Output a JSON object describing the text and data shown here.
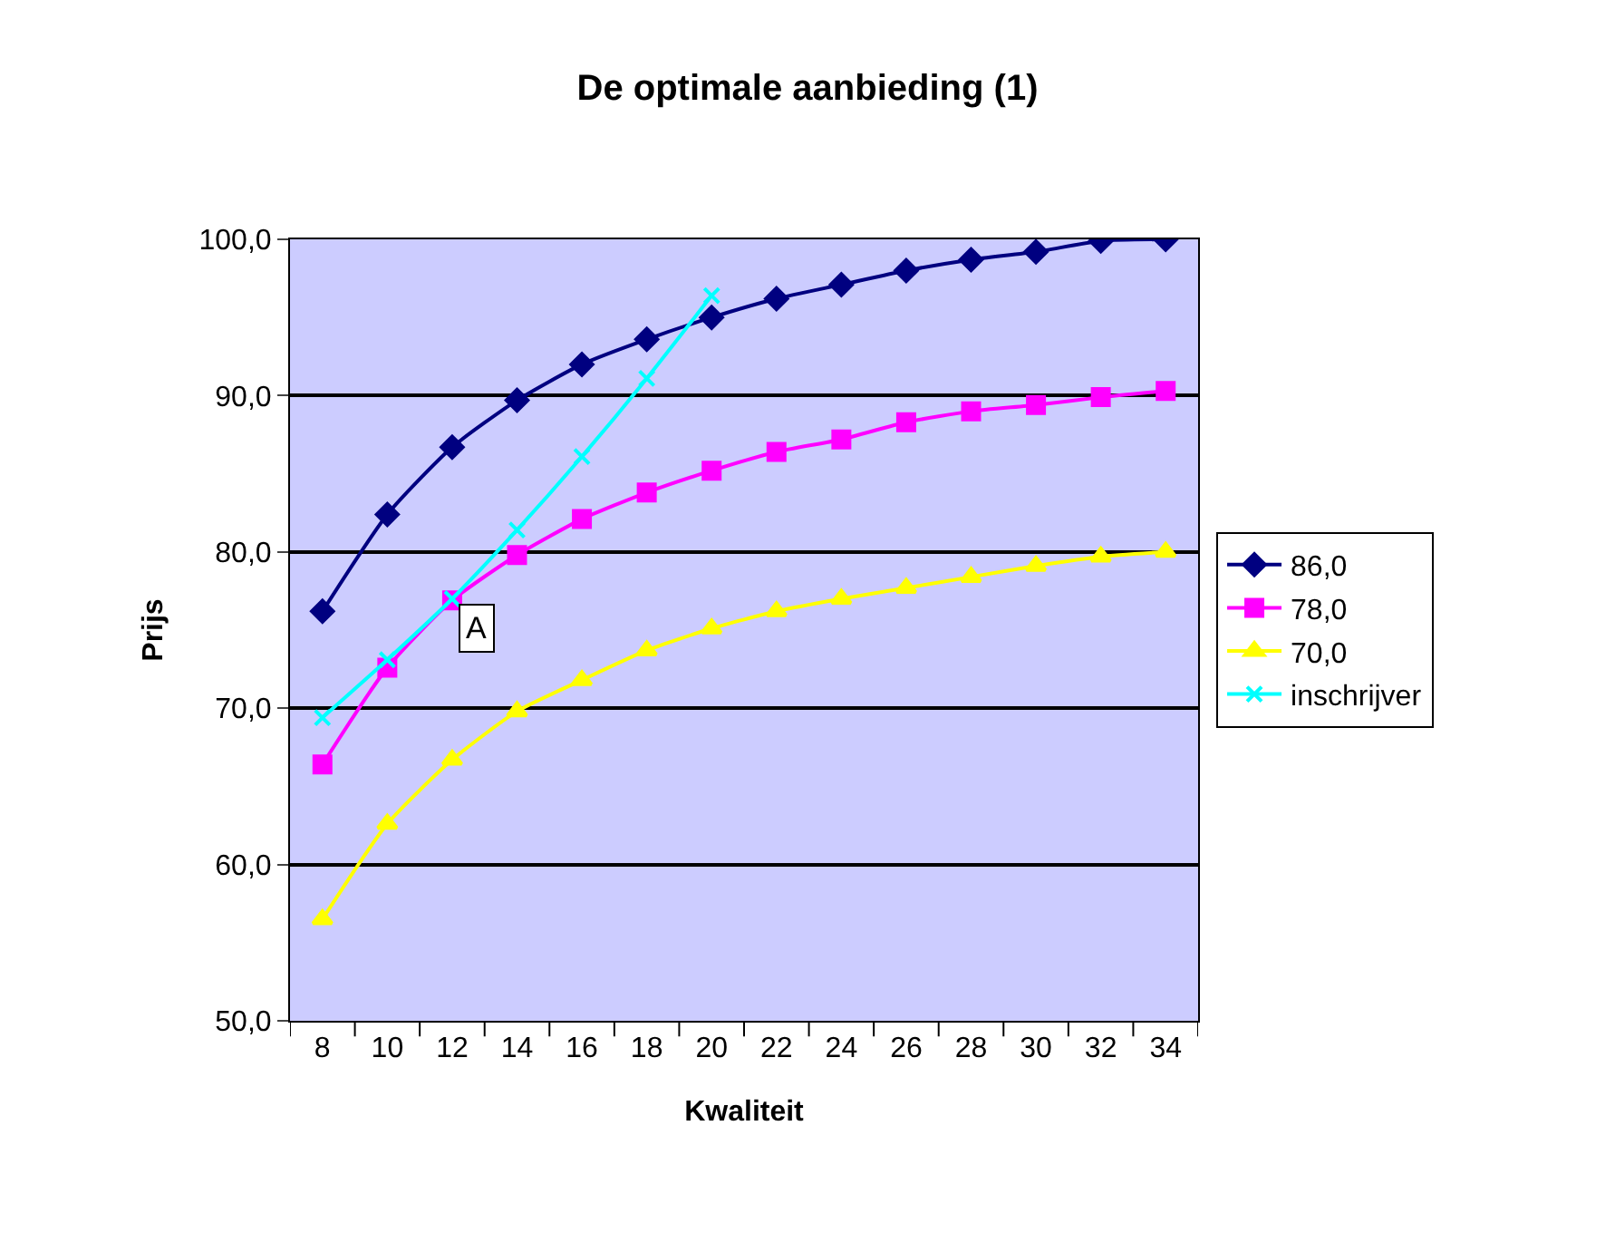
{
  "chart_data": {
    "type": "line",
    "title": "De optimale aanbieding (1)",
    "xlabel": "Kwaliteit",
    "ylabel": "Prijs",
    "categories": [
      "8",
      "10",
      "12",
      "14",
      "16",
      "18",
      "20",
      "22",
      "24",
      "26",
      "28",
      "30",
      "32",
      "34"
    ],
    "series": [
      {
        "name": "86,0",
        "color": "#000080",
        "marker": "diamond",
        "values": [
          76.2,
          82.4,
          86.7,
          89.7,
          92.0,
          93.6,
          95.0,
          96.2,
          97.1,
          98.0,
          98.7,
          99.2,
          99.9,
          100.0
        ]
      },
      {
        "name": "78,0",
        "color": "#ff00ff",
        "marker": "square",
        "values": [
          66.4,
          72.6,
          76.9,
          79.8,
          82.1,
          83.8,
          85.2,
          86.4,
          87.2,
          88.3,
          89.0,
          89.4,
          89.9,
          90.3
        ]
      },
      {
        "name": "70,0",
        "color": "#ffff00",
        "marker": "triangle",
        "values": [
          56.5,
          62.6,
          66.7,
          69.8,
          71.8,
          73.7,
          75.1,
          76.2,
          77.0,
          77.7,
          78.4,
          79.1,
          79.7,
          80.0
        ]
      },
      {
        "name": "inschrijver",
        "color": "#00ffff",
        "marker": "cross",
        "values": [
          69.4,
          73.1,
          77.0,
          81.4,
          86.1,
          91.1,
          96.4,
          null,
          null,
          null,
          null,
          null,
          null,
          null
        ]
      }
    ],
    "ylim": [
      50,
      100
    ],
    "yticks": [
      {
        "value": 50,
        "label": "50,0"
      },
      {
        "value": 60,
        "label": "60,0"
      },
      {
        "value": 70,
        "label": "70,0"
      },
      {
        "value": 80,
        "label": "80,0"
      },
      {
        "value": 90,
        "label": "90,0"
      },
      {
        "value": 100,
        "label": "100,0"
      }
    ],
    "grid": "y",
    "legend": "right",
    "line_style": "solid",
    "annotations": [
      {
        "text": "A",
        "x": "12",
        "y": 76.9
      }
    ]
  }
}
